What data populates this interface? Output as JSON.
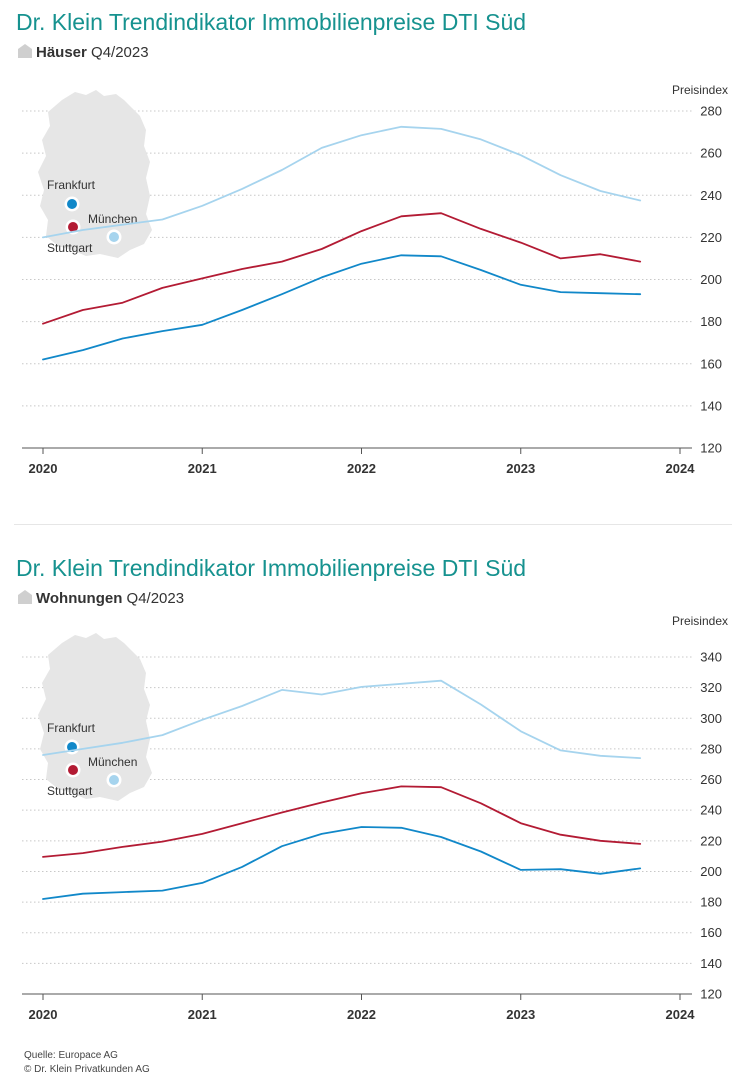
{
  "colors": {
    "title": "#16928f",
    "muenchen": "#a6d4ee",
    "stuttgart": "#b31b34",
    "frankfurt": "#1188c9",
    "grid": "#c8c8c8",
    "map": "#e6e6e6"
  },
  "icons": {
    "house": "house-icon",
    "map": "germany-map-icon"
  },
  "legend": {
    "frankfurt": "Frankfurt",
    "muenchen": "München",
    "stuttgart": "Stuttgart"
  },
  "footer": {
    "source": "Quelle: Europace AG",
    "copyright": "© Dr. Klein Privatkunden AG"
  },
  "chart_data": [
    {
      "type": "line",
      "title": "Dr. Klein Trendindikator Immobilienpreise DTI Süd",
      "subtitle_bold": "Häuser",
      "subtitle_rest": " Q4/2023",
      "ylabel": "Preisindex",
      "xlim": [
        2020,
        2024
      ],
      "ylim": [
        120,
        280
      ],
      "yticks": [
        120,
        140,
        160,
        180,
        200,
        220,
        240,
        260,
        280
      ],
      "xticks": [
        2020,
        2021,
        2022,
        2023,
        2024
      ],
      "grid": true,
      "legend": "top-left map",
      "series": [
        {
          "name": "München",
          "color": "#a6d4ee",
          "x": [
            2020,
            2020.25,
            2020.5,
            2020.75,
            2021,
            2021.25,
            2021.5,
            2021.75,
            2022,
            2022.25,
            2022.5,
            2022.75,
            2023,
            2023.25,
            2023.5,
            2023.75
          ],
          "y": [
            220,
            223.5,
            226,
            228.5,
            235,
            243,
            252,
            262.5,
            268.5,
            272.5,
            271.5,
            266.5,
            259,
            249.5,
            242,
            237.5
          ]
        },
        {
          "name": "Stuttgart",
          "color": "#b31b34",
          "x": [
            2020,
            2020.25,
            2020.5,
            2020.75,
            2021,
            2021.25,
            2021.5,
            2021.75,
            2022,
            2022.25,
            2022.5,
            2022.75,
            2023,
            2023.25,
            2023.5,
            2023.75
          ],
          "y": [
            179,
            185.5,
            189,
            196,
            200.5,
            205,
            208.5,
            214.5,
            223,
            230,
            231.5,
            224,
            217.5,
            210,
            212,
            208.5
          ]
        },
        {
          "name": "Frankfurt",
          "color": "#1188c9",
          "x": [
            2020,
            2020.25,
            2020.5,
            2020.75,
            2021,
            2021.25,
            2021.5,
            2021.75,
            2022,
            2022.25,
            2022.5,
            2022.75,
            2023,
            2023.25,
            2023.5,
            2023.75
          ],
          "y": [
            162,
            166.5,
            172,
            175.5,
            178.5,
            185.5,
            193,
            201,
            207.5,
            211.5,
            211,
            204.5,
            197.5,
            194,
            193.5,
            193
          ]
        }
      ]
    },
    {
      "type": "line",
      "title": "Dr. Klein Trendindikator Immobilienpreise DTI Süd",
      "subtitle_bold": "Wohnungen",
      "subtitle_rest": " Q4/2023",
      "ylabel": "Preisindex",
      "xlim": [
        2020,
        2024
      ],
      "ylim": [
        120,
        340
      ],
      "yticks": [
        120,
        140,
        160,
        180,
        200,
        220,
        240,
        260,
        280,
        300,
        320,
        340
      ],
      "xticks": [
        2020,
        2021,
        2022,
        2023,
        2024
      ],
      "grid": true,
      "legend": "top-left map",
      "series": [
        {
          "name": "München",
          "color": "#a6d4ee",
          "x": [
            2020,
            2020.25,
            2020.5,
            2020.75,
            2021,
            2021.25,
            2021.5,
            2021.75,
            2022,
            2022.25,
            2022.5,
            2022.75,
            2023,
            2023.25,
            2023.5,
            2023.75
          ],
          "y": [
            276,
            280,
            284,
            289,
            299,
            308,
            318.5,
            315.5,
            320.5,
            322.5,
            324.5,
            309,
            291.5,
            279,
            275.5,
            274
          ]
        },
        {
          "name": "Stuttgart",
          "color": "#b31b34",
          "x": [
            2020,
            2020.25,
            2020.5,
            2020.75,
            2021,
            2021.25,
            2021.5,
            2021.75,
            2022,
            2022.25,
            2022.5,
            2022.75,
            2023,
            2023.25,
            2023.5,
            2023.75
          ],
          "y": [
            209.5,
            212,
            216,
            219.5,
            224.5,
            231.5,
            238.5,
            245,
            251,
            255.5,
            255,
            244.5,
            231.5,
            224,
            220,
            218
          ]
        },
        {
          "name": "Frankfurt",
          "color": "#1188c9",
          "x": [
            2020,
            2020.25,
            2020.5,
            2020.75,
            2021,
            2021.25,
            2021.5,
            2021.75,
            2022,
            2022.25,
            2022.5,
            2022.75,
            2023,
            2023.25,
            2023.5,
            2023.75
          ],
          "y": [
            182,
            185.5,
            186.5,
            187.5,
            192.5,
            203,
            216.5,
            224.5,
            229,
            228.5,
            222.5,
            213,
            201,
            201.5,
            198.5,
            202
          ]
        }
      ]
    }
  ]
}
